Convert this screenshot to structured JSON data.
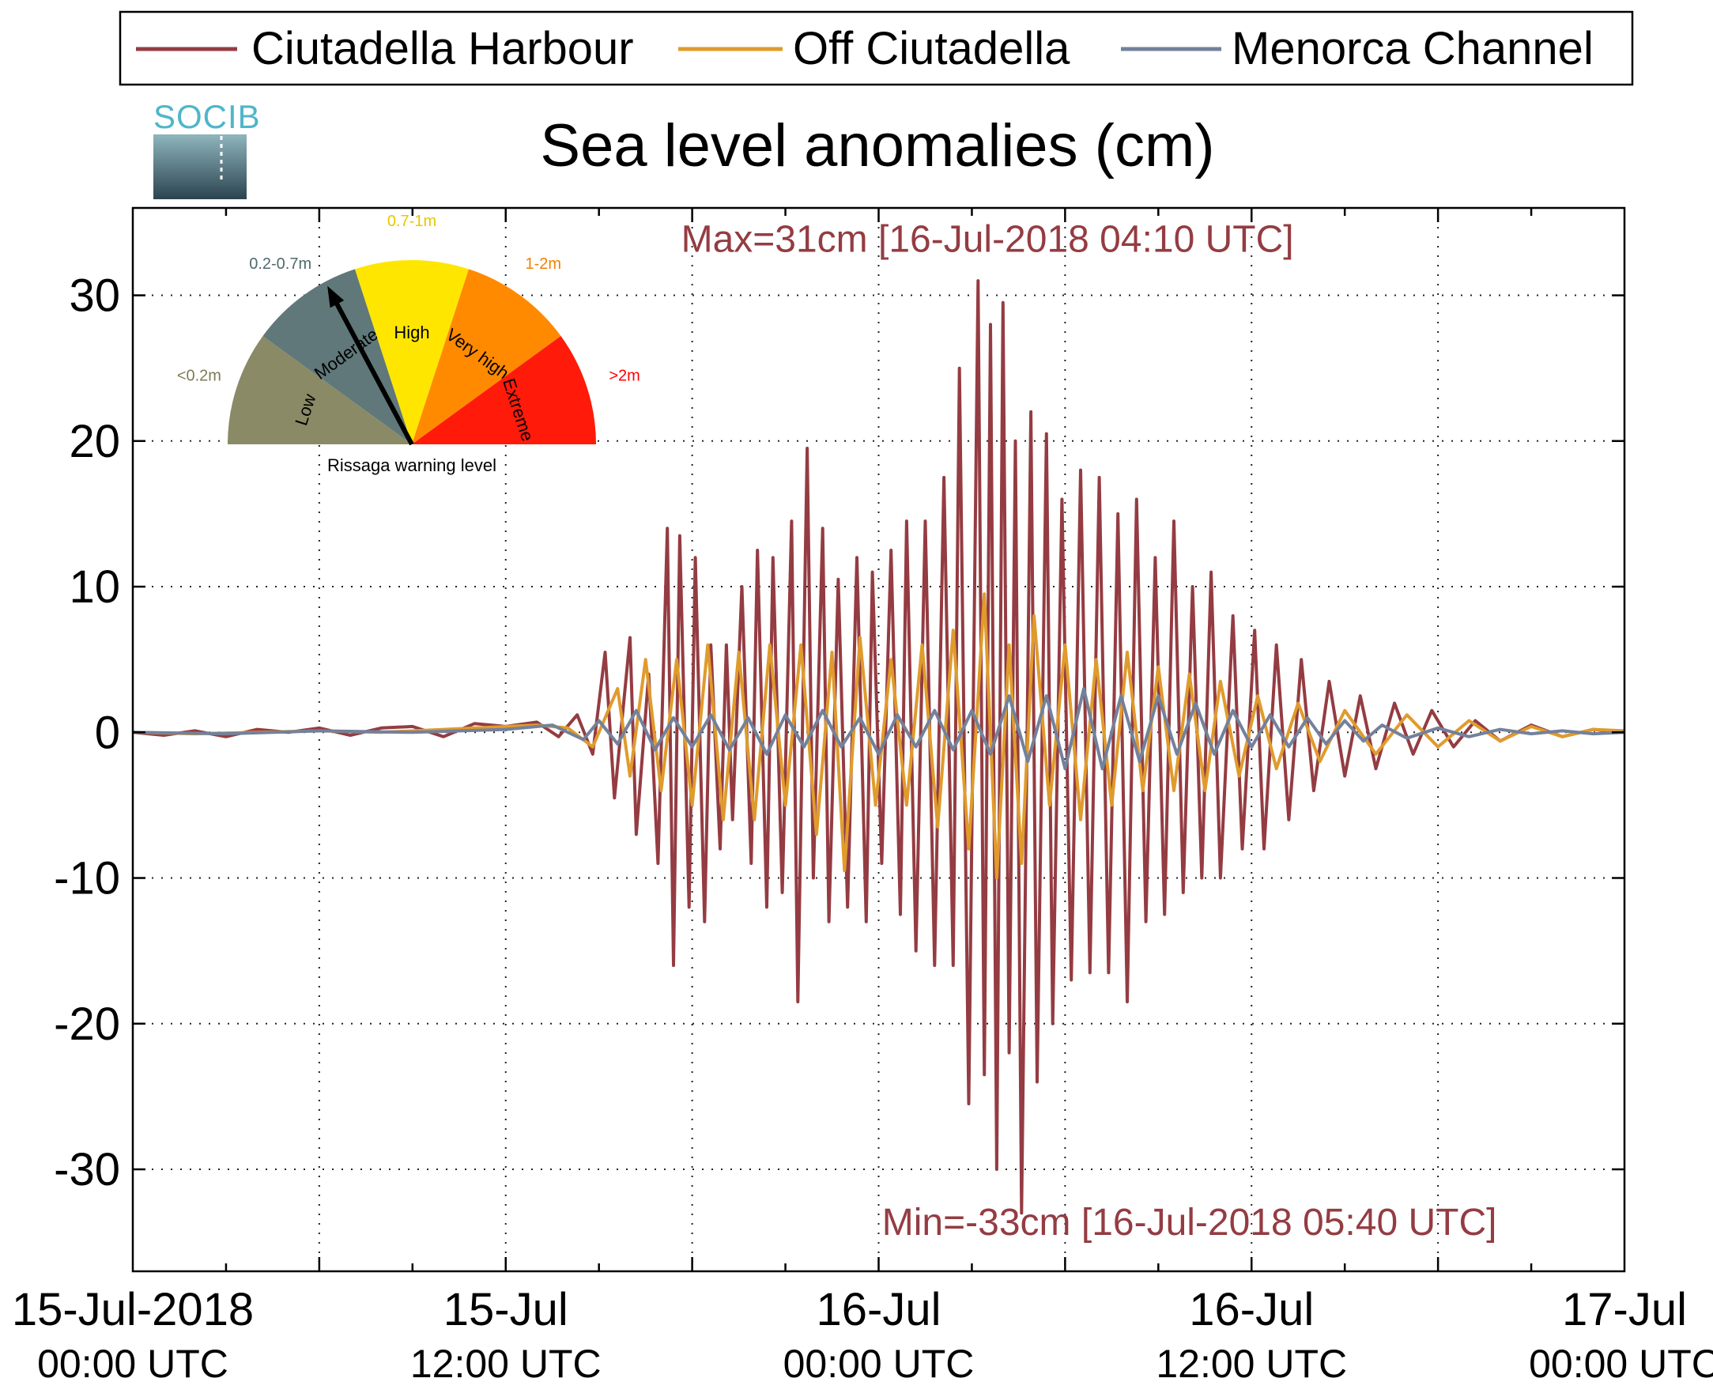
{
  "logo": {
    "text": "SOCIB"
  },
  "legend": {
    "items": [
      {
        "label": "Ciutadella Harbour",
        "color": "#943c42"
      },
      {
        "label": "Off Ciutadella",
        "color": "#e09b2d"
      },
      {
        "label": "Menorca Channel",
        "color": "#73819b"
      }
    ]
  },
  "gauge": {
    "caption": "Rissaga warning level",
    "needle_segment": "Moderate",
    "segments": [
      {
        "name": "Low",
        "range": "<0.2m",
        "color": "#8a8a66",
        "range_color": "#7c7c55"
      },
      {
        "name": "Moderate",
        "range": "0.2-0.7m",
        "color": "#60787a",
        "range_color": "#4f6a6c"
      },
      {
        "name": "High",
        "range": "0.7-1m",
        "color": "#ffe600",
        "range_color": "#e6c800"
      },
      {
        "name": "Very high",
        "range": "1-2m",
        "color": "#ff8a00",
        "range_color": "#f08000"
      },
      {
        "name": "Extreme",
        "range": ">2m",
        "color": "#ff1a0a",
        "range_color": "#ff0000"
      }
    ]
  },
  "chart_data": {
    "type": "line",
    "title": "Sea level anomalies (cm)",
    "xlabel": "",
    "ylabel": "",
    "x_unit": "hours since 15-Jul-2018 00:00 UTC",
    "xlim": [
      0,
      48
    ],
    "ylim": [
      -37,
      36
    ],
    "grid": true,
    "legend_position": "top",
    "yticks": [
      30,
      20,
      10,
      0,
      -10,
      -20,
      -30
    ],
    "xticks": [
      {
        "x": 0,
        "line1": "15-Jul-2018",
        "line2": "00:00 UTC"
      },
      {
        "x": 12,
        "line1": "15-Jul",
        "line2": "12:00 UTC"
      },
      {
        "x": 24,
        "line1": "16-Jul",
        "line2": "00:00 UTC"
      },
      {
        "x": 36,
        "line1": "16-Jul",
        "line2": "12:00 UTC"
      },
      {
        "x": 48,
        "line1": "17-Jul",
        "line2": "00:00 UTC"
      }
    ],
    "annotations": [
      {
        "text": "Max=31cm [16-Jul-2018 04:10 UTC]",
        "x": 27.5,
        "y": 33,
        "color": "#943c42"
      },
      {
        "text": "Min=-33cm [16-Jul-2018 05:40 UTC]",
        "x": 34,
        "y": -34.5,
        "color": "#943c42"
      }
    ],
    "series": [
      {
        "name": "Ciutadella Harbour",
        "color": "#943c42",
        "x": [
          0,
          1,
          2,
          3,
          4,
          5,
          6,
          7,
          8,
          9,
          10,
          11,
          12,
          13,
          13.7,
          14.3,
          14.8,
          15.2,
          15.5,
          16.0,
          16.2,
          16.6,
          16.9,
          17.2,
          17.4,
          17.6,
          17.9,
          18.1,
          18.4,
          18.6,
          18.9,
          19.1,
          19.3,
          19.6,
          19.9,
          20.1,
          20.4,
          20.6,
          20.9,
          21.2,
          21.4,
          21.7,
          21.9,
          22.2,
          22.4,
          22.7,
          23.0,
          23.3,
          23.6,
          23.8,
          24.1,
          24.4,
          24.7,
          24.9,
          25.2,
          25.5,
          25.8,
          26.1,
          26.4,
          26.6,
          26.9,
          27.2,
          27.4,
          27.6,
          27.8,
          28.0,
          28.2,
          28.4,
          28.6,
          28.9,
          29.1,
          29.4,
          29.6,
          29.9,
          30.2,
          30.5,
          30.8,
          31.1,
          31.4,
          31.7,
          32.0,
          32.3,
          32.6,
          32.9,
          33.2,
          33.5,
          33.8,
          34.1,
          34.4,
          34.7,
          35.0,
          35.4,
          35.7,
          36.1,
          36.4,
          36.8,
          37.2,
          37.6,
          38.0,
          38.5,
          39.0,
          39.5,
          40.0,
          40.6,
          41.2,
          41.8,
          42.5,
          43.2,
          44.0,
          45,
          46,
          47,
          48
        ],
        "y": [
          0,
          -0.2,
          0.1,
          -0.3,
          0.2,
          0,
          0.3,
          -0.2,
          0.3,
          0.4,
          -0.3,
          0.6,
          0.4,
          0.7,
          -0.3,
          1.2,
          -1.5,
          5.5,
          -4.5,
          6.5,
          -7,
          4,
          -9,
          14,
          -16,
          13.5,
          -12,
          12,
          -13,
          6,
          -8,
          6,
          -6,
          10,
          -9,
          12.5,
          -12,
          12,
          -11,
          14.5,
          -18.5,
          19.5,
          -10,
          14,
          -13,
          10.5,
          -12,
          12,
          -13,
          11,
          -9,
          12.5,
          -12.5,
          14.5,
          -15,
          14.5,
          -16,
          17.5,
          -16,
          25,
          -25.5,
          31,
          -23.5,
          28,
          -30,
          29.5,
          -22,
          20,
          -33,
          22,
          -24,
          20.5,
          -20,
          16,
          -17,
          18,
          -16.5,
          17.5,
          -16.5,
          15,
          -18.5,
          16,
          -13,
          12,
          -12.5,
          14.5,
          -11,
          10,
          -10,
          11,
          -10,
          8,
          -8,
          7,
          -8,
          6,
          -6,
          5,
          -4,
          3.5,
          -3,
          2.5,
          -2.5,
          2,
          -1.5,
          1.5,
          -1,
          0.8,
          -0.6,
          0.5,
          -0.3,
          0.2,
          0
        ]
      },
      {
        "name": "Off Ciutadella",
        "color": "#e09b2d",
        "x": [
          0,
          2,
          4,
          6,
          8,
          10,
          12,
          13,
          14,
          14.8,
          15.6,
          16.0,
          16.5,
          17.0,
          17.5,
          18.0,
          18.5,
          19.0,
          19.5,
          20.0,
          20.5,
          21.0,
          21.5,
          22.0,
          22.5,
          22.9,
          23.4,
          23.9,
          24.4,
          24.9,
          25.4,
          25.9,
          26.4,
          26.9,
          27.4,
          27.8,
          28.2,
          28.6,
          29.0,
          29.5,
          30.0,
          30.5,
          31.0,
          31.5,
          32.0,
          32.5,
          33.0,
          33.5,
          34.0,
          34.5,
          35.0,
          35.6,
          36.2,
          36.8,
          37.5,
          38.2,
          39.0,
          40.0,
          41.0,
          42.0,
          43.0,
          44.0,
          45.0,
          46.0,
          47.0,
          48.0
        ],
        "y": [
          0,
          -0.1,
          0,
          0.1,
          0,
          0.2,
          0.4,
          0.5,
          0.3,
          -1,
          3,
          -3,
          5,
          -4,
          5,
          -5,
          6,
          -6,
          5.5,
          -6,
          6,
          -5,
          6,
          -7,
          5.5,
          -9.5,
          6.5,
          -5,
          5,
          -5,
          6,
          -6.5,
          7,
          -8,
          9.5,
          -10,
          6,
          -9,
          8,
          -5,
          6,
          -6,
          5,
          -5,
          5.5,
          -4,
          4.5,
          -4,
          4,
          -4,
          3.5,
          -3,
          2.5,
          -2.5,
          2,
          -2,
          1.5,
          -1.5,
          1.2,
          -1,
          0.8,
          -0.6,
          0.4,
          -0.3,
          0.2,
          0.1
        ]
      },
      {
        "name": "Menorca Channel",
        "color": "#73819b",
        "x": [
          0,
          3,
          6,
          9,
          12,
          13.5,
          14.5,
          15.0,
          15.6,
          16.2,
          16.8,
          17.4,
          18.0,
          18.6,
          19.2,
          19.8,
          20.4,
          21.0,
          21.6,
          22.2,
          22.8,
          23.4,
          24.0,
          24.6,
          25.2,
          25.8,
          26.4,
          27.0,
          27.6,
          28.2,
          28.8,
          29.4,
          30.0,
          30.6,
          31.2,
          31.8,
          32.4,
          33.0,
          33.6,
          34.2,
          34.8,
          35.4,
          36.0,
          36.6,
          37.2,
          37.8,
          38.4,
          39.0,
          39.6,
          40.2,
          41.0,
          42.0,
          43.0,
          44.0,
          45.0,
          46.0,
          47.0,
          48.0
        ],
        "y": [
          0,
          -0.1,
          0.1,
          0,
          0.2,
          0.5,
          -0.5,
          0.8,
          -0.8,
          1.5,
          -1.2,
          1.0,
          -1.0,
          1.2,
          -1.2,
          1.0,
          -1.5,
          1.2,
          -1.0,
          1.5,
          -1.0,
          1.0,
          -1.5,
          1.2,
          -1.0,
          1.5,
          -1.2,
          1.5,
          -1.5,
          2.5,
          -2.0,
          2.5,
          -2.5,
          3.0,
          -2.5,
          2.5,
          -2.0,
          2.5,
          -1.5,
          2.0,
          -1.5,
          1.5,
          -1.0,
          1.2,
          -1.0,
          1.0,
          -0.8,
          0.8,
          -0.6,
          0.5,
          -0.4,
          0.3,
          -0.3,
          0.2,
          -0.1,
          0.1,
          -0.1,
          0
        ]
      }
    ]
  }
}
